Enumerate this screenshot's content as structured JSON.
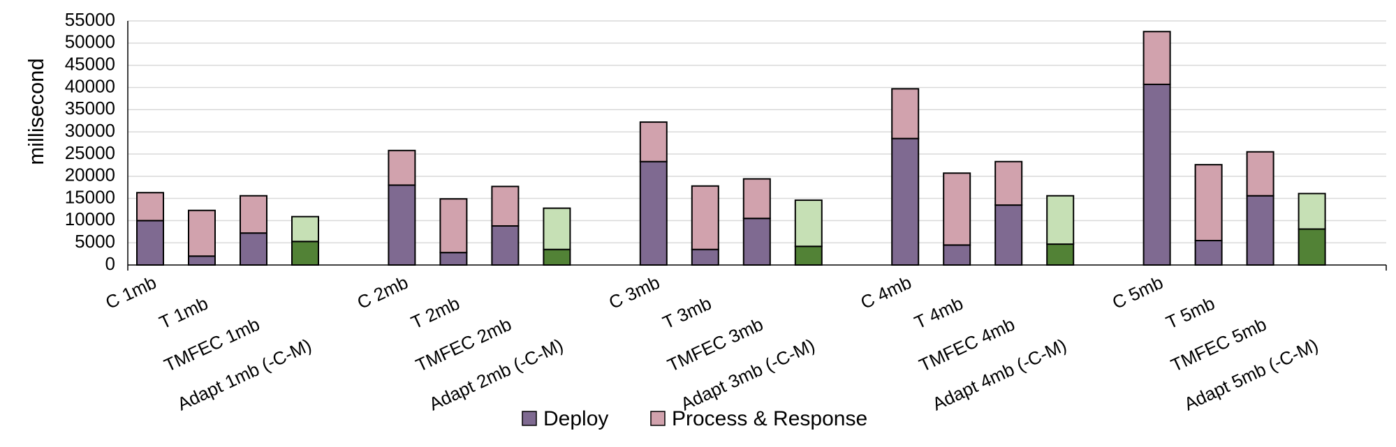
{
  "chart_data": {
    "type": "bar",
    "stacked": true,
    "ylabel": "millisecond",
    "xlabel": "",
    "ylim": [
      0,
      55000
    ],
    "yticks": [
      0,
      5000,
      10000,
      15000,
      20000,
      25000,
      30000,
      35000,
      40000,
      45000,
      50000,
      55000
    ],
    "grid": true,
    "legend_position": "bottom",
    "legend": [
      "Deploy",
      "Process & Response"
    ],
    "colors": {
      "deploy": "#7f6a91",
      "process": "#d1a2ad",
      "adapt_deploy": "#528236",
      "adapt_process": "#c6e0b5"
    },
    "groups": [
      {
        "categories": [
          "C 1mb",
          "T 1mb",
          "TMFEC 1mb",
          "Adapt 1mb (-C-M)"
        ]
      },
      {
        "categories": [
          "C 2mb",
          "T 2mb",
          "TMFEC 2mb",
          "Adapt 2mb (-C-M)"
        ]
      },
      {
        "categories": [
          "C 3mb",
          "T 3mb",
          "TMFEC 3mb",
          "Adapt 3mb (-C-M)"
        ]
      },
      {
        "categories": [
          "C 4mb",
          "T 4mb",
          "TMFEC 4mb",
          "Adapt 4mb (-C-M)"
        ]
      },
      {
        "categories": [
          "C 5mb",
          "T 5mb",
          "TMFEC 5mb",
          "Adapt 5mb (-C-M)"
        ]
      }
    ],
    "series": [
      {
        "name": "Deploy",
        "values": [
          [
            10000,
            2000,
            7200,
            5300
          ],
          [
            18000,
            2800,
            8800,
            3500
          ],
          [
            23300,
            3500,
            10500,
            4200
          ],
          [
            28500,
            4500,
            13500,
            4700
          ],
          [
            40700,
            5500,
            15600,
            8100
          ]
        ]
      },
      {
        "name": "Process & Response",
        "values": [
          [
            6300,
            10300,
            8400,
            5600
          ],
          [
            7800,
            12100,
            8900,
            9300
          ],
          [
            8900,
            14300,
            8900,
            10400
          ],
          [
            11200,
            16200,
            9800,
            10900
          ],
          [
            11900,
            17100,
            9900,
            8000
          ]
        ]
      }
    ]
  }
}
